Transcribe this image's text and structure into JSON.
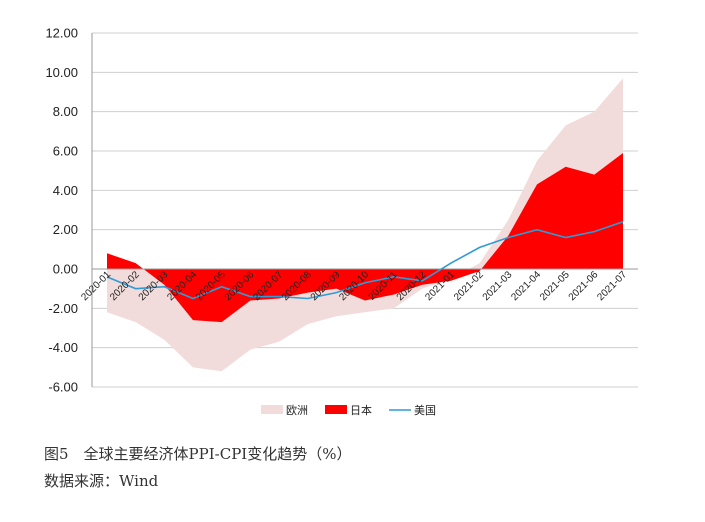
{
  "chart_data": {
    "type": "area",
    "categories": [
      "2020-01",
      "2020-02",
      "2020-03",
      "2020-04",
      "2020-05",
      "2020-06",
      "2020-07",
      "2020-08",
      "2020-09",
      "2020-10",
      "2020-11",
      "2020-12",
      "2021-01",
      "2021-02",
      "2021-03",
      "2021-04",
      "2021-05",
      "2021-06",
      "2021-07"
    ],
    "x_tick_labels": [
      "2020-01",
      "2020-02",
      "2020-03",
      "2020-04",
      "2020-05",
      "2020-06",
      "2020-07",
      "2020-08",
      "2020-09",
      "2020-10",
      "2020-11",
      "2020-12",
      "2021-01",
      "2021-02",
      "2021-03",
      "2021-04",
      "2021-05",
      "2021-06",
      "2021-07"
    ],
    "series": [
      {
        "name": "欧洲",
        "kind": "area",
        "color": "#f2dcdb",
        "values": [
          -2.2,
          -2.7,
          -3.6,
          -5.0,
          -5.2,
          -4.1,
          -3.7,
          -2.8,
          -2.4,
          -2.2,
          -2.0,
          -1.0,
          -0.5,
          0.3,
          2.5,
          5.5,
          7.3,
          8.0,
          9.7
        ]
      },
      {
        "name": "日本",
        "kind": "area",
        "color": "#ff0000",
        "values": [
          0.8,
          0.3,
          -0.8,
          -2.6,
          -2.7,
          -1.6,
          -1.5,
          -1.2,
          -1.0,
          -1.6,
          -1.3,
          -0.8,
          -0.6,
          -0.1,
          1.7,
          4.3,
          5.2,
          4.8,
          5.9
        ]
      },
      {
        "name": "美国",
        "kind": "line",
        "color": "#2e9bd6",
        "values": [
          -0.4,
          -1.0,
          -0.9,
          -1.5,
          -0.9,
          -1.4,
          -1.4,
          -1.5,
          -1.2,
          -0.7,
          -0.4,
          -0.6,
          0.3,
          1.1,
          1.6,
          2.0,
          1.6,
          1.9,
          2.4
        ]
      }
    ],
    "y_ticks": [
      "12.00",
      "10.00",
      "8.00",
      "6.00",
      "4.00",
      "2.00",
      "0.00",
      "-2.00",
      "-4.00",
      "-6.00"
    ],
    "ylim": [
      -6,
      12
    ],
    "grid": true,
    "legend": "bottom",
    "title": "",
    "xlabel": "",
    "ylabel": ""
  },
  "caption": {
    "title": "图5　全球主要经济体PPI-CPI变化趋势（%）",
    "source": "数据来源：Wind"
  }
}
